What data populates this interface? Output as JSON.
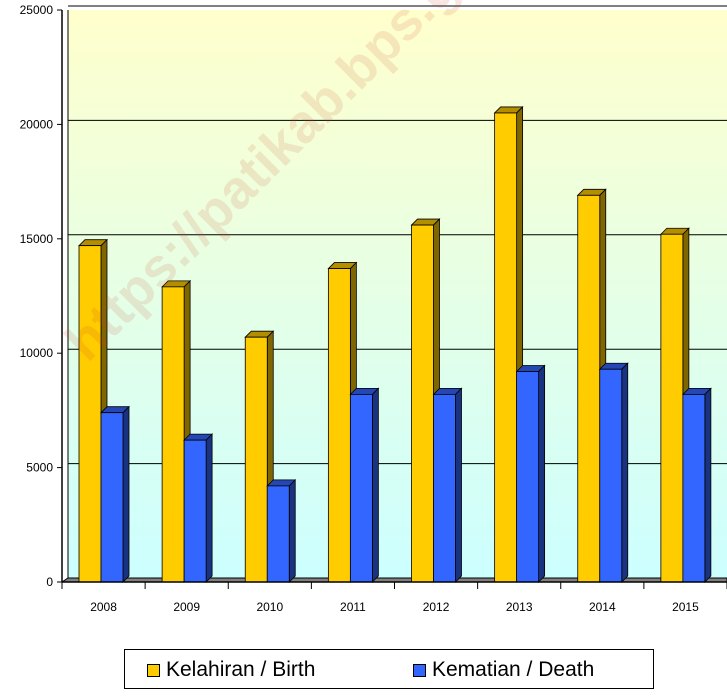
{
  "chart_data": {
    "type": "bar",
    "categories": [
      "2008",
      "2009",
      "2010",
      "2011",
      "2012",
      "2013",
      "2014",
      "2015"
    ],
    "series": [
      {
        "name": "Kelahiran / Birth",
        "color": "#ffcc00",
        "values": [
          14700,
          12900,
          10700,
          13700,
          15600,
          20500,
          16900,
          15200
        ]
      },
      {
        "name": "Kematian / Death",
        "color": "#3366ff",
        "values": [
          7400,
          6200,
          4200,
          8200,
          8200,
          9200,
          9300,
          8200
        ]
      }
    ],
    "yticks": [
      "0",
      "5000",
      "10000",
      "15000",
      "20000",
      "25000"
    ],
    "ylim": [
      0,
      25000
    ],
    "grid": true,
    "legend_position": "bottom"
  },
  "watermark": "https://patikab.bps.go.id"
}
